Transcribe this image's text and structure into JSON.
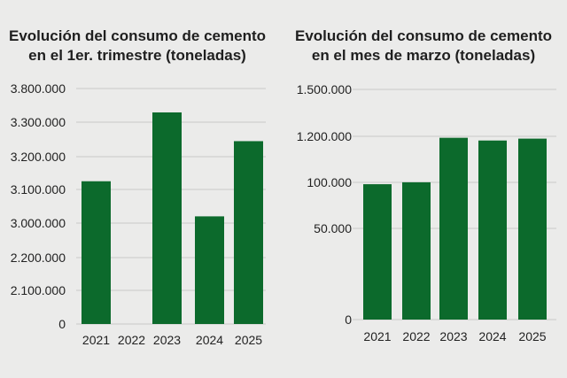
{
  "colors": {
    "bar": "#0c6a2c",
    "background": "#ebebea",
    "grid": "#c8c8c8"
  },
  "chart_data": [
    {
      "type": "bar",
      "title_lines": [
        "Evolución del consumo de cemento",
        "en el 1er. trimestre (toneladas)"
      ],
      "categories": [
        "2021",
        "2022",
        "2023",
        "2024",
        "2025"
      ],
      "y_tick_labels": [
        "0",
        "2.100.000",
        "2.200.000",
        "3.000.000",
        "3.100.000",
        "3.200.000",
        "3.300.000",
        "3.800.000"
      ],
      "y_tick_values": [
        0,
        2100000,
        2200000,
        3000000,
        3100000,
        3200000,
        3300000,
        3800000
      ],
      "values": [
        3125000,
        null,
        3445000,
        3020000,
        3245000
      ],
      "grid": true
    },
    {
      "type": "bar",
      "title_lines": [
        "Evolución del consumo de cemento",
        "en el mes de marzo (toneladas)"
      ],
      "categories": [
        "2021",
        "2022",
        "2023",
        "2024",
        "2025"
      ],
      "y_tick_labels": [
        "0",
        "50.000",
        "100.000",
        "1.200.000",
        "1.500.000"
      ],
      "y_tick_values": [
        0,
        50000,
        100000,
        1200000,
        1500000
      ],
      "values": [
        98000,
        102000,
        1165000,
        1100000,
        1145000
      ],
      "grid": true
    }
  ]
}
